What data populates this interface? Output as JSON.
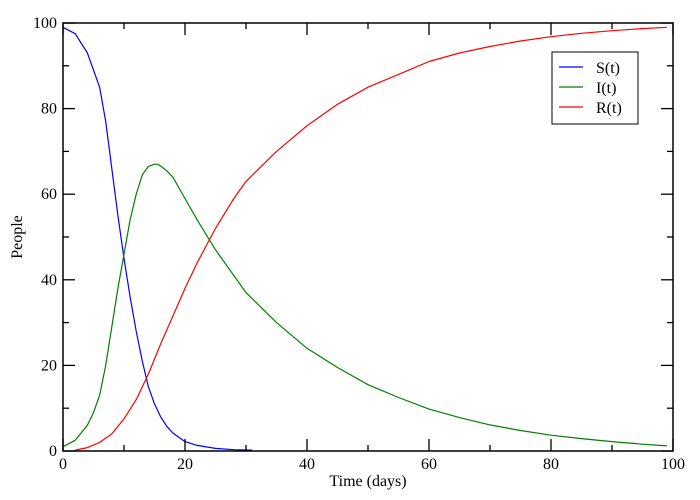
{
  "chart_data": {
    "type": "line",
    "title": "",
    "xlabel": "Time (days)",
    "ylabel": "People",
    "xlim": [
      0,
      100
    ],
    "ylim": [
      0,
      100
    ],
    "xticks": [
      0,
      20,
      40,
      60,
      80,
      100
    ],
    "yticks": [
      0,
      20,
      40,
      60,
      80,
      100
    ],
    "xminor_step": 10,
    "yminor_step": 10,
    "grid": false,
    "legend_position": "upper right",
    "series": [
      {
        "name": "S(t)",
        "color": "#0000ff",
        "x": [
          0,
          2,
          4,
          5,
          6,
          7,
          8,
          9,
          10,
          11,
          12,
          13,
          14,
          15,
          16,
          17,
          18,
          20,
          22,
          25,
          28,
          31
        ],
        "y": [
          99,
          97.5,
          93,
          89,
          85,
          77,
          66,
          55,
          45,
          36,
          28,
          21,
          15,
          11,
          8,
          5.8,
          4.2,
          2.2,
          1.3,
          0.6,
          0.3,
          0.2
        ]
      },
      {
        "name": "I(t)",
        "color": "#008000",
        "x": [
          0,
          2,
          4,
          5,
          6,
          7,
          8,
          9,
          10,
          11,
          12,
          13,
          14,
          15,
          15.5,
          16,
          17,
          18,
          20,
          22,
          25,
          30,
          35,
          40,
          45,
          50,
          55,
          60,
          65,
          70,
          75,
          80,
          85,
          90,
          95,
          99
        ],
        "y": [
          1,
          2.5,
          6,
          9,
          13,
          20,
          29,
          38,
          46,
          54,
          60,
          64.5,
          66.5,
          67,
          67,
          66.6,
          65.5,
          64,
          59,
          54,
          47,
          37,
          30,
          24,
          19.5,
          15.5,
          12.5,
          9.8,
          7.8,
          6.1,
          4.8,
          3.7,
          2.9,
          2.2,
          1.6,
          1.2
        ]
      },
      {
        "name": "R(t)",
        "color": "#ff0000",
        "x": [
          2,
          4,
          6,
          8,
          10,
          12,
          14,
          16,
          18,
          20,
          22,
          25,
          28,
          30,
          35,
          40,
          45,
          50,
          55,
          60,
          65,
          70,
          75,
          80,
          85,
          90,
          95,
          99
        ],
        "y": [
          0.2,
          0.8,
          2,
          4,
          7.5,
          12,
          18,
          25,
          31.5,
          38,
          44,
          52,
          59,
          63,
          70,
          76,
          81,
          85,
          88,
          91,
          93,
          94.5,
          95.8,
          96.8,
          97.6,
          98.2,
          98.7,
          99
        ]
      }
    ]
  }
}
